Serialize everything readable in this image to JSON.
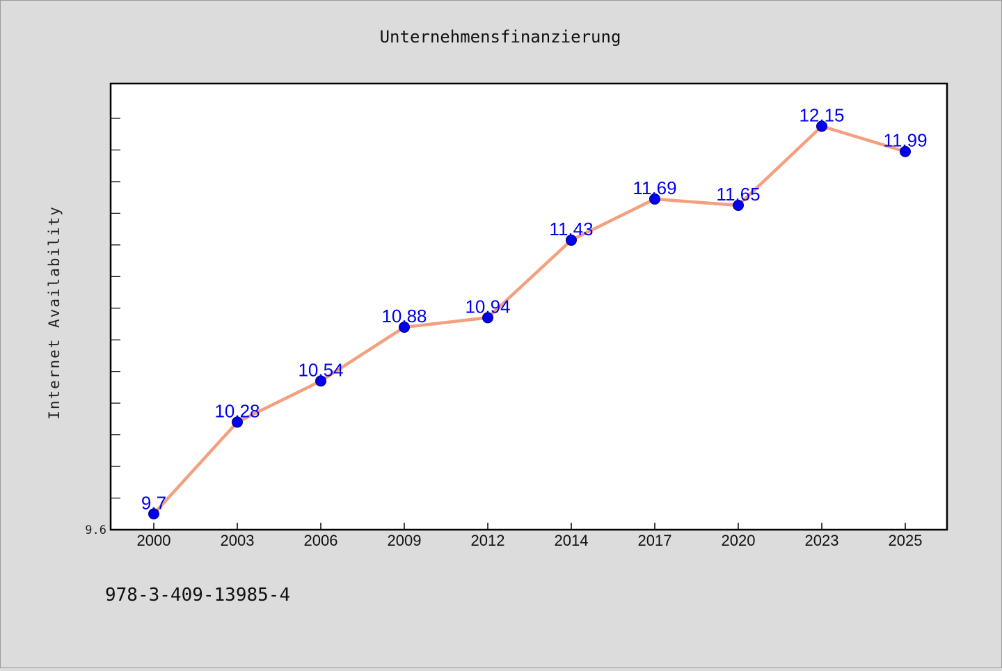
{
  "chart_data": {
    "type": "line",
    "title": "Unternehmensfinanzierung",
    "xlabel": "",
    "ylabel": "Internet Availability",
    "categories": [
      "2000",
      "2003",
      "2006",
      "2009",
      "2012",
      "2014",
      "2017",
      "2020",
      "2023",
      "2025"
    ],
    "series": [
      {
        "values": [
          9.7,
          10.28,
          10.54,
          10.88,
          10.94,
          11.43,
          11.69,
          11.65,
          12.15,
          11.99
        ]
      }
    ],
    "data_labels": [
      "9.7",
      "10.28",
      "10.54",
      "10.88",
      "10.94",
      "11.43",
      "11.69",
      "11.65",
      "12.15",
      "11.99"
    ],
    "ylim": [
      9.6,
      12.42
    ],
    "y_tick_label": "9.6",
    "grid": false,
    "legend": "none",
    "colors": {
      "line": "#f4a07e",
      "marker": "#0000ee",
      "data_label": "#0000ee",
      "background": "#dcdcdc",
      "plot_background": "#ffffff"
    }
  },
  "footer": {
    "isbn": "978-3-409-13985-4"
  }
}
